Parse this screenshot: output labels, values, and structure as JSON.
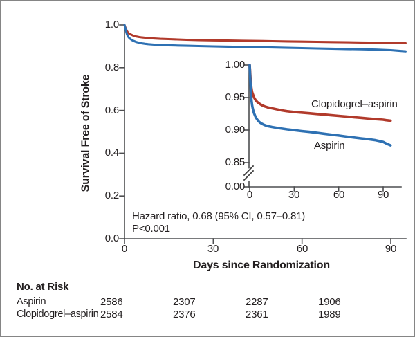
{
  "colors": {
    "clopidogrel_aspirin": "#b13a2b",
    "aspirin": "#2e71b3",
    "axis": "#4d4e50",
    "text": "#231f20"
  },
  "main_chart": {
    "ylabel": "Survival Free of Stroke",
    "xlabel": "Days since Randomization",
    "yticks": [
      "1.0",
      "0.8",
      "0.6",
      "0.4",
      "0.2",
      "0.0"
    ],
    "xticks": [
      "0",
      "30",
      "60",
      "90"
    ],
    "annotation": {
      "line1": "Hazard ratio, 0.68 (95% CI, 0.57–0.81)",
      "line2": "P<0.001"
    }
  },
  "inset_chart": {
    "yticks": [
      "1.00",
      "0.95",
      "0.90",
      "0.85",
      "0.00"
    ],
    "xticks": [
      "0",
      "30",
      "60",
      "90"
    ],
    "labels": {
      "clopidogrel_aspirin": "Clopidogrel–aspirin",
      "aspirin": "Aspirin"
    }
  },
  "risk_table": {
    "title": "No. at Risk",
    "rows": [
      {
        "label": "Aspirin",
        "values": [
          "2586",
          "2307",
          "2287",
          "1906"
        ]
      },
      {
        "label": "Clopidogrel–aspirin",
        "values": [
          "2584",
          "2376",
          "2361",
          "1989"
        ]
      }
    ]
  },
  "chart_data": {
    "type": "line",
    "title": "",
    "xlabel": "Days since Randomization",
    "ylabel": "Survival Free of Stroke",
    "xlim": [
      0,
      95
    ],
    "main_ylim": [
      0.0,
      1.0
    ],
    "inset_ylim_visible": [
      0.85,
      1.0
    ],
    "x_ticks": [
      0,
      30,
      60,
      90
    ],
    "main_yticks": [
      1.0,
      0.8,
      0.6,
      0.4,
      0.2,
      0.0
    ],
    "inset_yticks": [
      1.0,
      0.95,
      0.9,
      0.85
    ],
    "inset_axis_break": true,
    "grid": false,
    "legend_position": "labels-next-to-curves-in-inset",
    "annotations": [
      "Hazard ratio, 0.68 (95% CI, 0.57–0.81)",
      "P<0.001"
    ],
    "series": [
      {
        "name": "Clopidogrel–aspirin",
        "color": "#b13a2b",
        "points": [
          [
            0,
            1.0
          ],
          [
            0.4,
            0.985
          ],
          [
            0.8,
            0.972
          ],
          [
            1.2,
            0.964
          ],
          [
            1.6,
            0.959
          ],
          [
            2,
            0.956
          ],
          [
            2.5,
            0.953
          ],
          [
            3,
            0.95
          ],
          [
            4,
            0.946
          ],
          [
            5,
            0.9435
          ],
          [
            6,
            0.9415
          ],
          [
            7,
            0.94
          ],
          [
            8,
            0.9385
          ],
          [
            10,
            0.9365
          ],
          [
            12,
            0.935
          ],
          [
            15,
            0.9335
          ],
          [
            18,
            0.932
          ],
          [
            21,
            0.9305
          ],
          [
            25,
            0.929
          ],
          [
            30,
            0.9278
          ],
          [
            35,
            0.9268
          ],
          [
            40,
            0.9258
          ],
          [
            45,
            0.9248
          ],
          [
            50,
            0.9238
          ],
          [
            55,
            0.9228
          ],
          [
            60,
            0.9218
          ],
          [
            65,
            0.9208
          ],
          [
            70,
            0.9198
          ],
          [
            75,
            0.9188
          ],
          [
            80,
            0.9178
          ],
          [
            85,
            0.9168
          ],
          [
            90,
            0.916
          ],
          [
            92,
            0.9152
          ],
          [
            95,
            0.9145
          ]
        ]
      },
      {
        "name": "Aspirin",
        "color": "#2e71b3",
        "points": [
          [
            0,
            1.0
          ],
          [
            0.4,
            0.978
          ],
          [
            0.8,
            0.958
          ],
          [
            1.2,
            0.946
          ],
          [
            1.6,
            0.939
          ],
          [
            2,
            0.934
          ],
          [
            2.5,
            0.929
          ],
          [
            3,
            0.9255
          ],
          [
            4,
            0.92
          ],
          [
            5,
            0.9165
          ],
          [
            6,
            0.9135
          ],
          [
            7,
            0.9115
          ],
          [
            8,
            0.91
          ],
          [
            10,
            0.9078
          ],
          [
            12,
            0.9062
          ],
          [
            15,
            0.9048
          ],
          [
            18,
            0.9036
          ],
          [
            21,
            0.9026
          ],
          [
            25,
            0.9012
          ],
          [
            30,
            0.8998
          ],
          [
            35,
            0.8984
          ],
          [
            40,
            0.8972
          ],
          [
            45,
            0.8958
          ],
          [
            50,
            0.8944
          ],
          [
            55,
            0.893
          ],
          [
            60,
            0.8916
          ],
          [
            65,
            0.89
          ],
          [
            70,
            0.8886
          ],
          [
            75,
            0.8872
          ],
          [
            80,
            0.886
          ],
          [
            85,
            0.8844
          ],
          [
            90,
            0.8818
          ],
          [
            92,
            0.8795
          ],
          [
            95,
            0.8765
          ]
        ]
      }
    ]
  }
}
